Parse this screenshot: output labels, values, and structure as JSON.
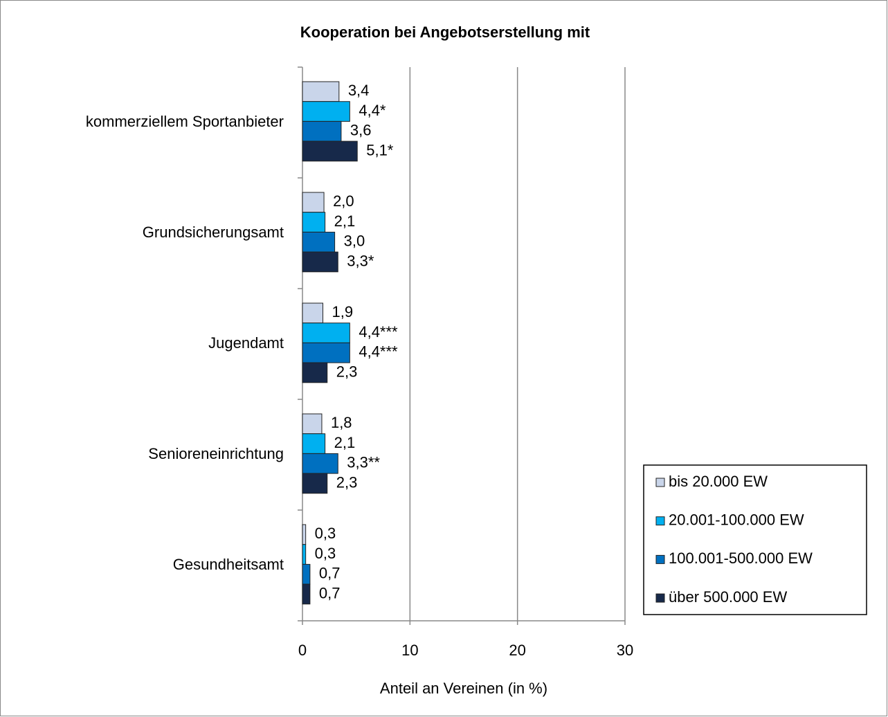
{
  "chart_data": {
    "type": "hbar",
    "title": "Kooperation bei Angebotserstellung mit",
    "xlabel": "Anteil an Vereinen (in %)",
    "categories": [
      "kommerziellem Sportanbieter",
      "Grundsicherungsamt",
      "Jugendamt",
      "Senioreneinrichtung",
      "Gesundheitsamt"
    ],
    "series": [
      {
        "name": "bis 20.000 EW",
        "color": "#c9d5ea",
        "values": [
          3.4,
          2.0,
          1.9,
          1.8,
          0.3
        ],
        "value_labels": [
          "3,4",
          "2,0",
          "1,9",
          "1,8",
          "0,3"
        ]
      },
      {
        "name": "20.001-100.000 EW",
        "color": "#00b0f0",
        "values": [
          4.4,
          2.1,
          4.4,
          2.1,
          0.3
        ],
        "value_labels": [
          "4,4*",
          "2,1",
          "4,4***",
          "2,1",
          "0,3"
        ]
      },
      {
        "name": "100.001-500.000 EW",
        "color": "#0070c0",
        "values": [
          3.6,
          3.0,
          4.4,
          3.3,
          0.7
        ],
        "value_labels": [
          "3,6",
          "3,0",
          "4,4***",
          "3,3**",
          "0,7"
        ]
      },
      {
        "name": "über 500.000 EW",
        "color": "#17294a",
        "values": [
          5.1,
          3.3,
          2.3,
          2.3,
          0.7
        ],
        "value_labels": [
          "5,1*",
          "3,3*",
          "2,3",
          "2,3",
          "0,7"
        ]
      }
    ],
    "xlim": [
      0,
      30
    ],
    "xticks": [
      0,
      10,
      20,
      30
    ],
    "grid": true,
    "legend": "lower right"
  }
}
